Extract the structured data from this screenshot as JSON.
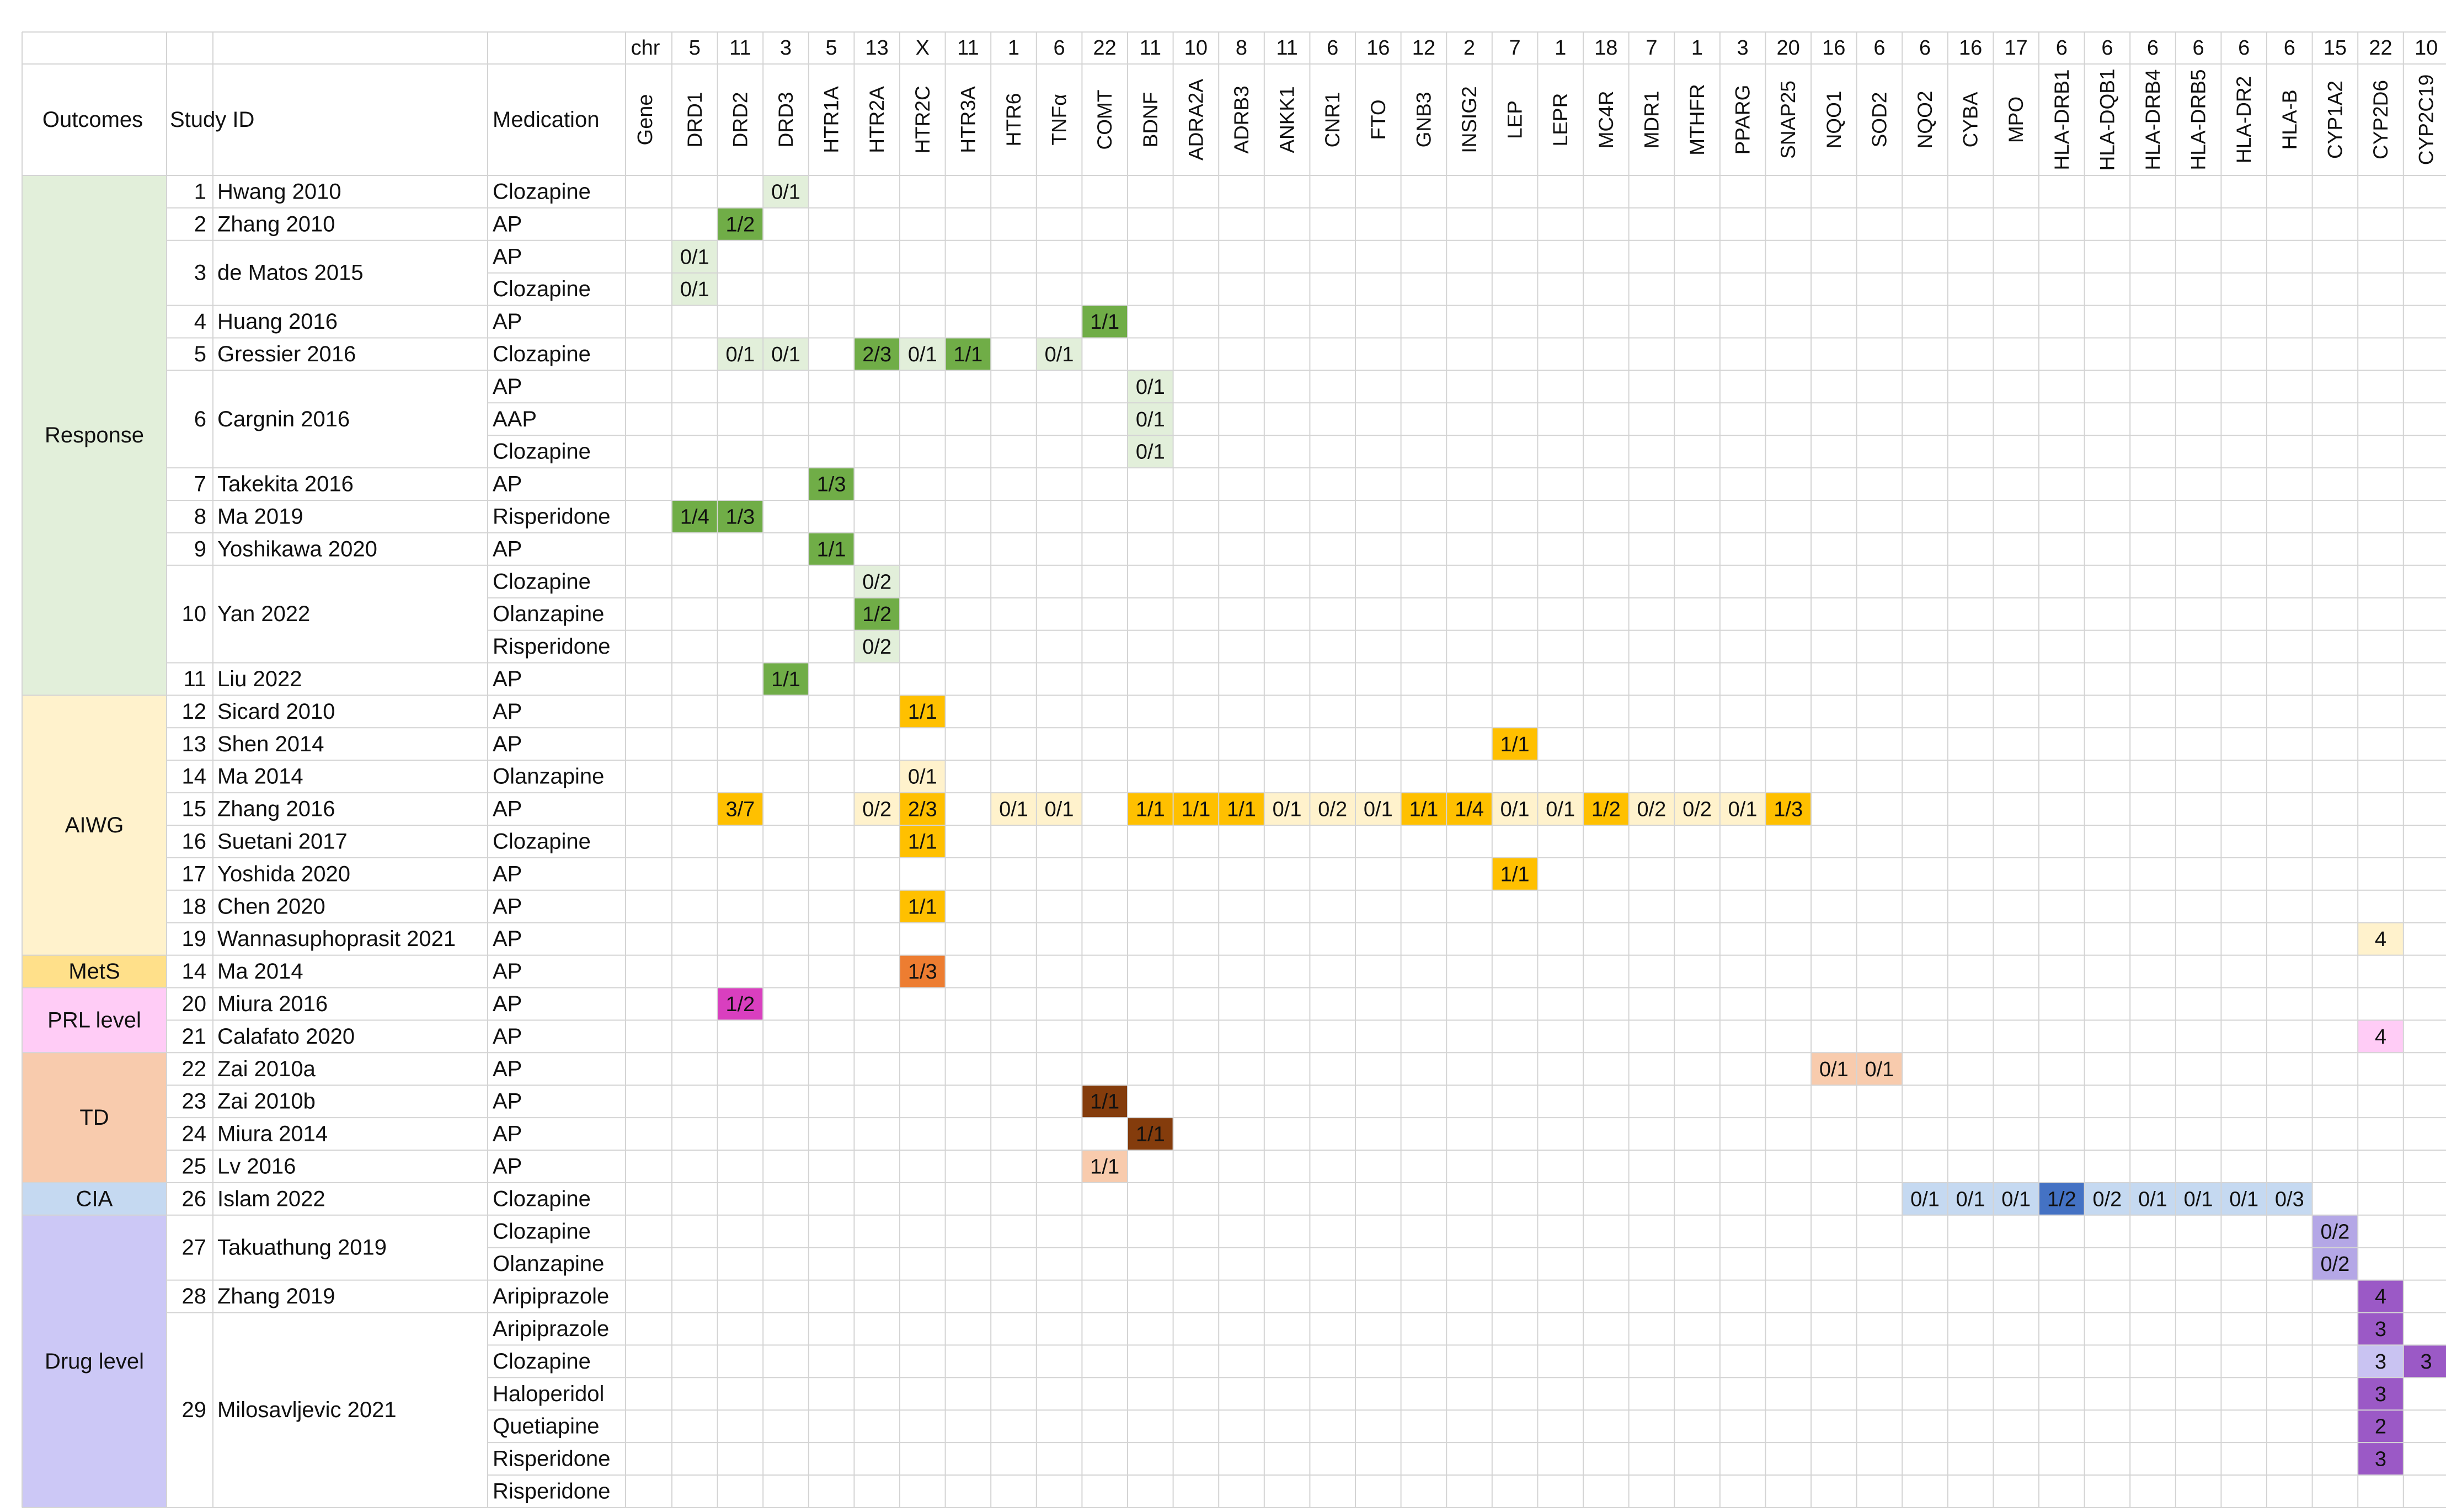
{
  "header": {
    "chr_label": "chr",
    "gene_label": "Gene",
    "outcomes_label": "Outcomes",
    "study_label": "Study ID",
    "medication_label": "Medication"
  },
  "genes": [
    {
      "chr": "5",
      "name": "DRD1"
    },
    {
      "chr": "11",
      "name": "DRD2"
    },
    {
      "chr": "3",
      "name": "DRD3"
    },
    {
      "chr": "5",
      "name": "HTR1A"
    },
    {
      "chr": "13",
      "name": "HTR2A"
    },
    {
      "chr": "X",
      "name": "HTR2C"
    },
    {
      "chr": "11",
      "name": "HTR3A"
    },
    {
      "chr": "1",
      "name": "HTR6"
    },
    {
      "chr": "6",
      "name": "TNFα"
    },
    {
      "chr": "22",
      "name": "COMT"
    },
    {
      "chr": "11",
      "name": "BDNF"
    },
    {
      "chr": "10",
      "name": "ADRA2A"
    },
    {
      "chr": "8",
      "name": "ADRB3"
    },
    {
      "chr": "11",
      "name": "ANKK1"
    },
    {
      "chr": "6",
      "name": "CNR1"
    },
    {
      "chr": "16",
      "name": "FTO"
    },
    {
      "chr": "12",
      "name": "GNB3"
    },
    {
      "chr": "2",
      "name": "INSIG2"
    },
    {
      "chr": "7",
      "name": "LEP"
    },
    {
      "chr": "1",
      "name": "LEPR"
    },
    {
      "chr": "18",
      "name": "MC4R"
    },
    {
      "chr": "7",
      "name": "MDR1"
    },
    {
      "chr": "1",
      "name": "MTHFR"
    },
    {
      "chr": "3",
      "name": "PPARG"
    },
    {
      "chr": "20",
      "name": "SNAP25"
    },
    {
      "chr": "16",
      "name": "NQO1"
    },
    {
      "chr": "6",
      "name": "SOD2"
    },
    {
      "chr": "6",
      "name": "NQO2"
    },
    {
      "chr": "16",
      "name": "CYBA"
    },
    {
      "chr": "17",
      "name": "MPO"
    },
    {
      "chr": "6",
      "name": "HLA-DRB1"
    },
    {
      "chr": "6",
      "name": "HLA-DQB1"
    },
    {
      "chr": "6",
      "name": "HLA-DRB4"
    },
    {
      "chr": "6",
      "name": "HLA-DRB5"
    },
    {
      "chr": "6",
      "name": "HLA-DR2"
    },
    {
      "chr": "6",
      "name": "HLA-B"
    },
    {
      "chr": "15",
      "name": "CYP1A2"
    },
    {
      "chr": "22",
      "name": "CYP2D6"
    },
    {
      "chr": "10",
      "name": "CYP2C19"
    }
  ],
  "outcomes": [
    {
      "label": "Response",
      "color": "#e2efda",
      "first_row": 0,
      "last_row": 15
    },
    {
      "label": "AIWG",
      "color": "#fff2cc",
      "first_row": 16,
      "last_row": 23
    },
    {
      "label": "MetS",
      "color": "#ffe08a",
      "first_row": 24,
      "last_row": 24
    },
    {
      "label": "PRL level",
      "color": "#ffccf6",
      "first_row": 25,
      "last_row": 26
    },
    {
      "label": "TD",
      "color": "#f8cbad",
      "first_row": 27,
      "last_row": 30
    },
    {
      "label": "CIA",
      "color": "#c5d9f1",
      "first_row": 31,
      "last_row": 31
    },
    {
      "label": "Drug level",
      "color": "#ccc8f6",
      "first_row": 32,
      "last_row": 40
    }
  ],
  "studies": [
    {
      "num": "1",
      "name": "Hwang 2010",
      "first_row": 0,
      "last_row": 0
    },
    {
      "num": "2",
      "name": "Zhang 2010",
      "first_row": 1,
      "last_row": 1
    },
    {
      "num": "3",
      "name": "de Matos 2015",
      "first_row": 2,
      "last_row": 3
    },
    {
      "num": "4",
      "name": "Huang 2016",
      "first_row": 4,
      "last_row": 4
    },
    {
      "num": "5",
      "name": "Gressier 2016",
      "first_row": 5,
      "last_row": 5
    },
    {
      "num": "6",
      "name": "Cargnin 2016",
      "first_row": 6,
      "last_row": 8
    },
    {
      "num": "7",
      "name": "Takekita 2016",
      "first_row": 9,
      "last_row": 9
    },
    {
      "num": "8",
      "name": "Ma 2019",
      "first_row": 10,
      "last_row": 10
    },
    {
      "num": "9",
      "name": "Yoshikawa 2020",
      "first_row": 11,
      "last_row": 11
    },
    {
      "num": "10",
      "name": "Yan 2022",
      "first_row": 12,
      "last_row": 14
    },
    {
      "num": "11",
      "name": "Liu 2022",
      "first_row": 15,
      "last_row": 15
    },
    {
      "num": "12",
      "name": "Sicard 2010",
      "first_row": 16,
      "last_row": 16
    },
    {
      "num": "13",
      "name": "Shen 2014",
      "first_row": 17,
      "last_row": 17
    },
    {
      "num": "14",
      "name": "Ma 2014",
      "first_row": 18,
      "last_row": 18
    },
    {
      "num": "15",
      "name": "Zhang 2016",
      "first_row": 19,
      "last_row": 19
    },
    {
      "num": "16",
      "name": "Suetani 2017",
      "first_row": 20,
      "last_row": 20
    },
    {
      "num": "17",
      "name": "Yoshida 2020",
      "first_row": 21,
      "last_row": 21
    },
    {
      "num": "18",
      "name": "Chen 2020",
      "first_row": 22,
      "last_row": 22
    },
    {
      "num": "19",
      "name": "Wannasuphoprasit 2021",
      "first_row": 23,
      "last_row": 23
    },
    {
      "num": "14",
      "name": "Ma 2014",
      "first_row": 24,
      "last_row": 24
    },
    {
      "num": "20",
      "name": "Miura 2016",
      "first_row": 25,
      "last_row": 25
    },
    {
      "num": "21",
      "name": "Calafato 2020",
      "first_row": 26,
      "last_row": 26
    },
    {
      "num": "22",
      "name": "Zai 2010a",
      "first_row": 27,
      "last_row": 27
    },
    {
      "num": "23",
      "name": "Zai 2010b",
      "first_row": 28,
      "last_row": 28
    },
    {
      "num": "24",
      "name": "Miura 2014",
      "first_row": 29,
      "last_row": 29
    },
    {
      "num": "25",
      "name": "Lv 2016",
      "first_row": 30,
      "last_row": 30
    },
    {
      "num": "26",
      "name": "Islam 2022",
      "first_row": 31,
      "last_row": 31
    },
    {
      "num": "27",
      "name": "Takuathung 2019",
      "first_row": 32,
      "last_row": 33
    },
    {
      "num": "28",
      "name": "Zhang 2019",
      "first_row": 34,
      "last_row": 34
    },
    {
      "num": "29",
      "name": "Milosavljevic 2021",
      "first_row": 35,
      "last_row": 40
    }
  ],
  "medications": [
    "Clozapine",
    "AP",
    "AP",
    "Clozapine",
    "AP",
    "Clozapine",
    "AP",
    "AAP",
    "Clozapine",
    "AP",
    "Risperidone",
    "AP",
    "Clozapine",
    "Olanzapine",
    "Risperidone",
    "AP",
    "AP",
    "AP",
    "Olanzapine",
    "AP",
    "Clozapine",
    "AP",
    "AP",
    "AP",
    "AP",
    "AP",
    "AP",
    "AP",
    "AP",
    "AP",
    "AP",
    "Clozapine",
    "Clozapine",
    "Olanzapine",
    "Aripiprazole",
    "Aripiprazole",
    "Clozapine",
    "Haloperidol",
    "Quetiapine",
    "Risperidone",
    "Risperidone"
  ],
  "cells": [
    {
      "row": 0,
      "col": 2,
      "text": "0/1",
      "fill": "#e2efda",
      "dark": false
    },
    {
      "row": 1,
      "col": 1,
      "text": "1/2",
      "fill": "#70ad47",
      "dark": false
    },
    {
      "row": 2,
      "col": 0,
      "text": "0/1",
      "fill": "#e2efda",
      "dark": false
    },
    {
      "row": 3,
      "col": 0,
      "text": "0/1",
      "fill": "#e2efda",
      "dark": false
    },
    {
      "row": 4,
      "col": 9,
      "text": "1/1",
      "fill": "#70ad47",
      "dark": false
    },
    {
      "row": 5,
      "col": 1,
      "text": "0/1",
      "fill": "#e2efda",
      "dark": false
    },
    {
      "row": 5,
      "col": 2,
      "text": "0/1",
      "fill": "#e2efda",
      "dark": false
    },
    {
      "row": 5,
      "col": 4,
      "text": "2/3",
      "fill": "#70ad47",
      "dark": false
    },
    {
      "row": 5,
      "col": 5,
      "text": "0/1",
      "fill": "#e2efda",
      "dark": false
    },
    {
      "row": 5,
      "col": 6,
      "text": "1/1",
      "fill": "#70ad47",
      "dark": false
    },
    {
      "row": 5,
      "col": 8,
      "text": "0/1",
      "fill": "#e2efda",
      "dark": false
    },
    {
      "row": 6,
      "col": 10,
      "text": "0/1",
      "fill": "#e2efda",
      "dark": false
    },
    {
      "row": 7,
      "col": 10,
      "text": "0/1",
      "fill": "#e2efda",
      "dark": false
    },
    {
      "row": 8,
      "col": 10,
      "text": "0/1",
      "fill": "#e2efda",
      "dark": false
    },
    {
      "row": 9,
      "col": 3,
      "text": "1/3",
      "fill": "#70ad47",
      "dark": false
    },
    {
      "row": 10,
      "col": 0,
      "text": "1/4",
      "fill": "#70ad47",
      "dark": false
    },
    {
      "row": 10,
      "col": 1,
      "text": "1/3",
      "fill": "#70ad47",
      "dark": false
    },
    {
      "row": 11,
      "col": 3,
      "text": "1/1",
      "fill": "#70ad47",
      "dark": false
    },
    {
      "row": 12,
      "col": 4,
      "text": "0/2",
      "fill": "#e2efda",
      "dark": false
    },
    {
      "row": 13,
      "col": 4,
      "text": "1/2",
      "fill": "#70ad47",
      "dark": false
    },
    {
      "row": 14,
      "col": 4,
      "text": "0/2",
      "fill": "#e2efda",
      "dark": false
    },
    {
      "row": 15,
      "col": 2,
      "text": "1/1",
      "fill": "#70ad47",
      "dark": false
    },
    {
      "row": 16,
      "col": 5,
      "text": "1/1",
      "fill": "#ffc000",
      "dark": false
    },
    {
      "row": 17,
      "col": 18,
      "text": "1/1",
      "fill": "#ffc000",
      "dark": false
    },
    {
      "row": 18,
      "col": 5,
      "text": "0/1",
      "fill": "#fff2cc",
      "dark": false
    },
    {
      "row": 19,
      "col": 1,
      "text": "3/7",
      "fill": "#ffc000",
      "dark": false
    },
    {
      "row": 19,
      "col": 4,
      "text": "0/2",
      "fill": "#fff2cc",
      "dark": false
    },
    {
      "row": 19,
      "col": 5,
      "text": "2/3",
      "fill": "#ffc000",
      "dark": false
    },
    {
      "row": 19,
      "col": 7,
      "text": "0/1",
      "fill": "#fff2cc",
      "dark": false
    },
    {
      "row": 19,
      "col": 8,
      "text": "0/1",
      "fill": "#fff2cc",
      "dark": false
    },
    {
      "row": 19,
      "col": 10,
      "text": "1/1",
      "fill": "#ffc000",
      "dark": false
    },
    {
      "row": 19,
      "col": 11,
      "text": "1/1",
      "fill": "#ffc000",
      "dark": false
    },
    {
      "row": 19,
      "col": 12,
      "text": "1/1",
      "fill": "#ffc000",
      "dark": false
    },
    {
      "row": 19,
      "col": 13,
      "text": "0/1",
      "fill": "#fff2cc",
      "dark": false
    },
    {
      "row": 19,
      "col": 14,
      "text": "0/2",
      "fill": "#fff2cc",
      "dark": false
    },
    {
      "row": 19,
      "col": 15,
      "text": "0/1",
      "fill": "#fff2cc",
      "dark": false
    },
    {
      "row": 19,
      "col": 16,
      "text": "1/1",
      "fill": "#ffc000",
      "dark": false
    },
    {
      "row": 19,
      "col": 17,
      "text": "1/4",
      "fill": "#ffc000",
      "dark": false
    },
    {
      "row": 19,
      "col": 18,
      "text": "0/1",
      "fill": "#fff2cc",
      "dark": false
    },
    {
      "row": 19,
      "col": 19,
      "text": "0/1",
      "fill": "#fff2cc",
      "dark": false
    },
    {
      "row": 19,
      "col": 20,
      "text": "1/2",
      "fill": "#ffc000",
      "dark": false
    },
    {
      "row": 19,
      "col": 21,
      "text": "0/2",
      "fill": "#fff2cc",
      "dark": false
    },
    {
      "row": 19,
      "col": 22,
      "text": "0/2",
      "fill": "#fff2cc",
      "dark": false
    },
    {
      "row": 19,
      "col": 23,
      "text": "0/1",
      "fill": "#fff2cc",
      "dark": false
    },
    {
      "row": 19,
      "col": 24,
      "text": "1/3",
      "fill": "#ffc000",
      "dark": false
    },
    {
      "row": 20,
      "col": 5,
      "text": "1/1",
      "fill": "#ffc000",
      "dark": false
    },
    {
      "row": 21,
      "col": 18,
      "text": "1/1",
      "fill": "#ffc000",
      "dark": false
    },
    {
      "row": 22,
      "col": 5,
      "text": "1/1",
      "fill": "#ffc000",
      "dark": false
    },
    {
      "row": 23,
      "col": 37,
      "text": "4",
      "fill": "#fff2cc",
      "dark": false
    },
    {
      "row": 24,
      "col": 5,
      "text": "1/3",
      "fill": "#ed7d31",
      "dark": false
    },
    {
      "row": 25,
      "col": 1,
      "text": "1/2",
      "fill": "#d93fbf",
      "dark": false
    },
    {
      "row": 26,
      "col": 37,
      "text": "4",
      "fill": "#ffccf6",
      "dark": false
    },
    {
      "row": 27,
      "col": 25,
      "text": "0/1",
      "fill": "#f8cbad",
      "dark": false
    },
    {
      "row": 27,
      "col": 26,
      "text": "0/1",
      "fill": "#f8cbad",
      "dark": false
    },
    {
      "row": 28,
      "col": 9,
      "text": "1/1",
      "fill": "#843c0c",
      "dark": true
    },
    {
      "row": 29,
      "col": 10,
      "text": "1/1",
      "fill": "#843c0c",
      "dark": true
    },
    {
      "row": 30,
      "col": 9,
      "text": "1/1",
      "fill": "#f8cbad",
      "dark": false
    },
    {
      "row": 31,
      "col": 27,
      "text": "0/1",
      "fill": "#c5d9f1",
      "dark": false
    },
    {
      "row": 31,
      "col": 28,
      "text": "0/1",
      "fill": "#c5d9f1",
      "dark": false
    },
    {
      "row": 31,
      "col": 29,
      "text": "0/1",
      "fill": "#c5d9f1",
      "dark": false
    },
    {
      "row": 31,
      "col": 30,
      "text": "1/2",
      "fill": "#4472c4",
      "dark": false
    },
    {
      "row": 31,
      "col": 31,
      "text": "0/2",
      "fill": "#c5d9f1",
      "dark": false
    },
    {
      "row": 31,
      "col": 32,
      "text": "0/1",
      "fill": "#c5d9f1",
      "dark": false
    },
    {
      "row": 31,
      "col": 33,
      "text": "0/1",
      "fill": "#c5d9f1",
      "dark": false
    },
    {
      "row": 31,
      "col": 34,
      "text": "0/1",
      "fill": "#c5d9f1",
      "dark": false
    },
    {
      "row": 31,
      "col": 35,
      "text": "0/3",
      "fill": "#c5d9f1",
      "dark": false
    },
    {
      "row": 32,
      "col": 36,
      "text": "0/2",
      "fill": "#b4a7e6",
      "dark": false
    },
    {
      "row": 33,
      "col": 36,
      "text": "0/2",
      "fill": "#b4a7e6",
      "dark": false
    },
    {
      "row": 34,
      "col": 37,
      "text": "4",
      "fill": "#9b59c6",
      "dark": true
    },
    {
      "row": 35,
      "col": 37,
      "text": "3",
      "fill": "#9b59c6",
      "dark": true
    },
    {
      "row": 36,
      "col": 37,
      "text": "3",
      "fill": "#c9c3f2",
      "dark": false
    },
    {
      "row": 36,
      "col": 38,
      "text": "3",
      "fill": "#9b59c6",
      "dark": true
    },
    {
      "row": 37,
      "col": 37,
      "text": "3",
      "fill": "#9b59c6",
      "dark": true
    },
    {
      "row": 38,
      "col": 37,
      "text": "2",
      "fill": "#9b59c6",
      "dark": true
    },
    {
      "row": 39,
      "col": 37,
      "text": "3",
      "fill": "#9b59c6",
      "dark": true
    }
  ]
}
